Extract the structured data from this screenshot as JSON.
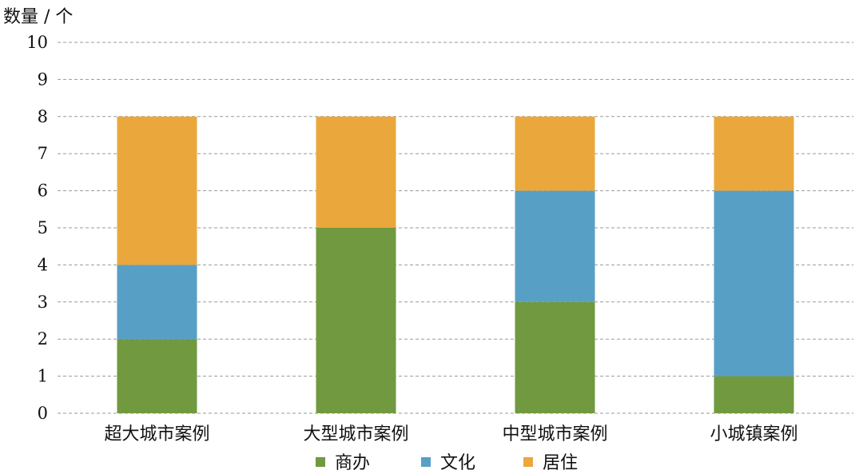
{
  "chart_data": {
    "type": "bar",
    "stacked": true,
    "title": "",
    "xlabel": "",
    "ylabel": "数量 / 个",
    "ylim": [
      0,
      10
    ],
    "yticks": [
      0,
      1,
      2,
      3,
      4,
      5,
      6,
      7,
      8,
      9,
      10
    ],
    "grid": true,
    "legend_position": "bottom",
    "categories": [
      "超大城市案例",
      "大型城市案例",
      "中型城市案例",
      "小城镇案例"
    ],
    "series": [
      {
        "name": "商办",
        "color": "#71993f",
        "values": [
          2,
          5,
          3,
          1
        ]
      },
      {
        "name": "文化",
        "color": "#589fc6",
        "values": [
          2,
          0,
          3,
          5
        ]
      },
      {
        "name": "居住",
        "color": "#eaa83c",
        "values": [
          4,
          3,
          2,
          2
        ]
      }
    ]
  }
}
